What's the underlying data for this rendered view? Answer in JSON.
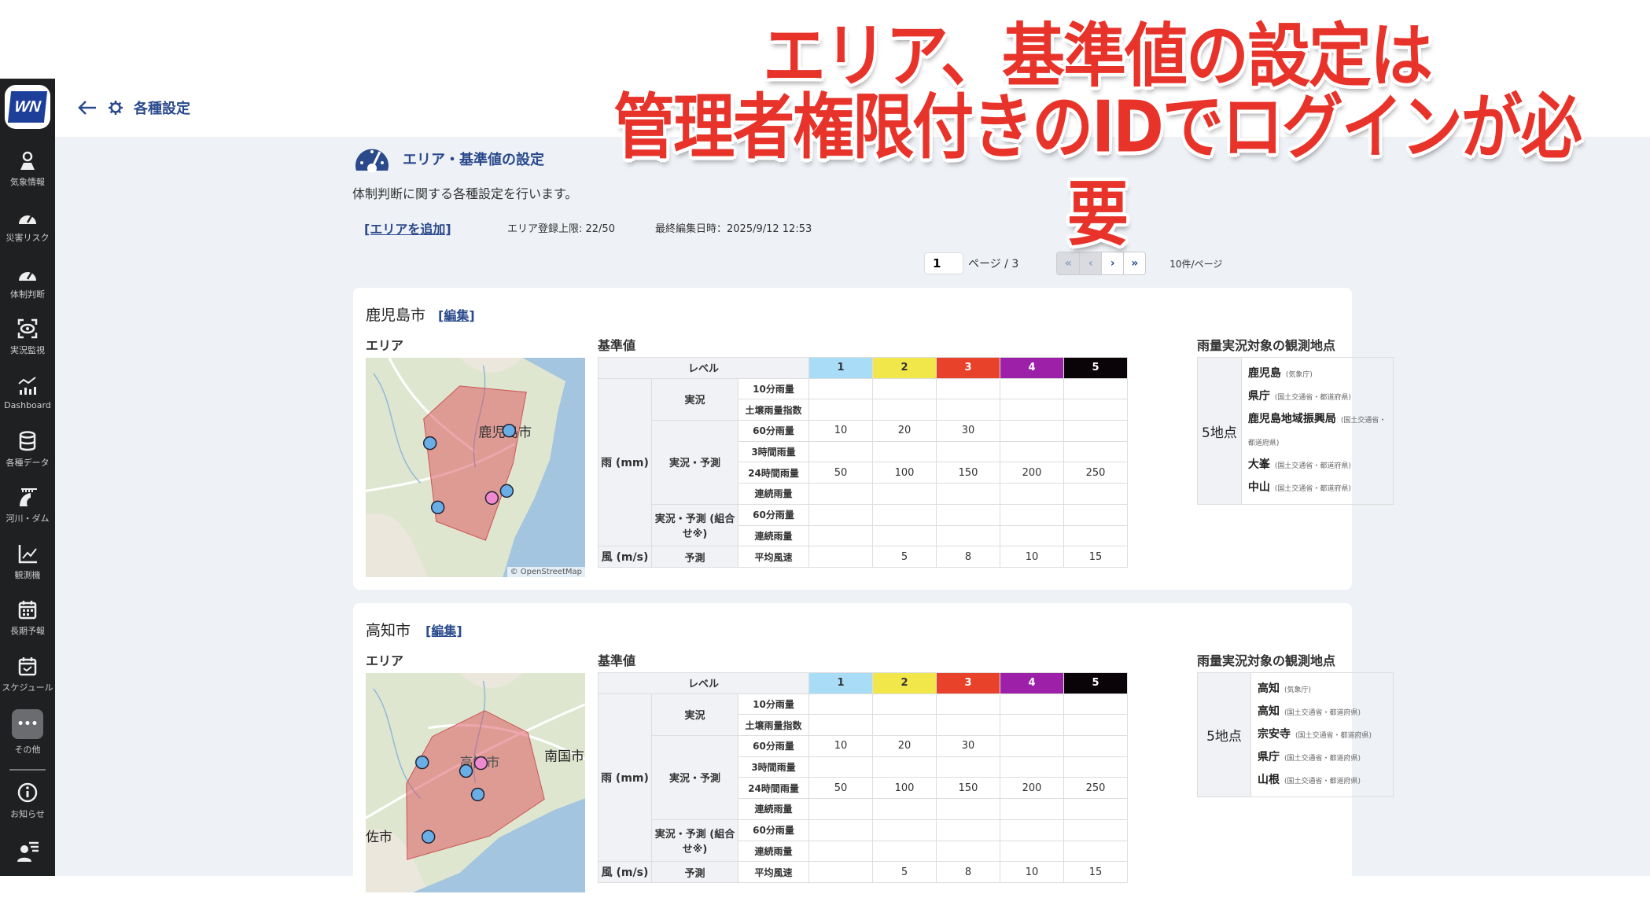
{
  "banner": {
    "line1": "エリア、基準値の設定は",
    "line2": "管理者権限付きのIDでログインが必要"
  },
  "sidebar": {
    "logo": "WN",
    "items": [
      {
        "label": "気象情報",
        "icon": "map-pin-icon"
      },
      {
        "label": "災害リスク",
        "icon": "gauge-icon"
      },
      {
        "label": "体制判断",
        "icon": "gauge-icon"
      },
      {
        "label": "実況監視",
        "icon": "eye-scan-icon"
      },
      {
        "label": "Dashboard",
        "icon": "chart-icon"
      },
      {
        "label": "各種データ",
        "icon": "database-icon"
      },
      {
        "label": "河川・ダム",
        "icon": "dam-icon"
      },
      {
        "label": "観測機",
        "icon": "line-chart-icon"
      },
      {
        "label": "長期予報",
        "icon": "calendar-icon"
      },
      {
        "label": "スケジュール",
        "icon": "calendar-check-icon"
      },
      {
        "label": "その他",
        "icon": "more-icon"
      }
    ],
    "notice": {
      "label": "お知らせ",
      "icon": "info-icon"
    },
    "user": {
      "icon": "user-menu-icon"
    }
  },
  "header": {
    "title": "各種設定"
  },
  "section": {
    "title": "エリア・基準値の設定",
    "description": "体制判断に関する各種設定を行います。",
    "add_area": "[エリアを追加]",
    "limit": "エリア登録上限: 22/50",
    "last_edited": "最終編集日時：2025/9/12 12:53"
  },
  "pager": {
    "page": "1",
    "of": "ページ / 3",
    "per_page": "10件/ページ",
    "buttons": [
      "«",
      "‹",
      "›",
      "»"
    ]
  },
  "labels": {
    "area": "エリア",
    "thresholds": "基準値",
    "stations": "雨量実況対象の観測地点",
    "edit": "[編集]",
    "osm": "© OpenStreetMap"
  },
  "levels": {
    "label": "レベル",
    "items": [
      {
        "label": "1",
        "color": "#a9dcf7",
        "text": "#333"
      },
      {
        "label": "2",
        "color": "#f1e64a",
        "text": "#333"
      },
      {
        "label": "3",
        "color": "#e8432a",
        "text": "#fff"
      },
      {
        "label": "4",
        "color": "#9c21a8",
        "text": "#fff"
      },
      {
        "label": "5",
        "color": "#0a0308",
        "text": "#fff"
      }
    ]
  },
  "areas": [
    {
      "name": "鹿児島市",
      "map_labels": [
        "鹿児島市"
      ],
      "station_count": "5地点",
      "stations": [
        {
          "name": "鹿児島",
          "src": "(気象庁)"
        },
        {
          "name": "県庁",
          "src": "(国土交通省・都道府県)"
        },
        {
          "name": "鹿児島地域振興局",
          "src": "(国土交通省・都道府県)"
        },
        {
          "name": "大峯",
          "src": "(国土交通省・都道府県)"
        },
        {
          "name": "中山",
          "src": "(国土交通省・都道府県)"
        }
      ],
      "groups": [
        {
          "label": "雨 (mm)",
          "subs": [
            {
              "label": "実況",
              "items": [
                {
                  "label": "10分雨量",
                  "values": [
                    "",
                    "",
                    "",
                    "",
                    ""
                  ]
                },
                {
                  "label": "土壌雨量指数",
                  "values": [
                    "",
                    "",
                    "",
                    "",
                    ""
                  ]
                }
              ]
            },
            {
              "label": "実況・予測",
              "items": [
                {
                  "label": "60分雨量",
                  "values": [
                    "10",
                    "20",
                    "30",
                    "",
                    ""
                  ]
                },
                {
                  "label": "3時間雨量",
                  "values": [
                    "",
                    "",
                    "",
                    "",
                    ""
                  ]
                },
                {
                  "label": "24時間雨量",
                  "values": [
                    "50",
                    "100",
                    "150",
                    "200",
                    "250"
                  ]
                },
                {
                  "label": "連続雨量",
                  "values": [
                    "",
                    "",
                    "",
                    "",
                    ""
                  ]
                }
              ]
            },
            {
              "label": "実況・予測 (組合せ※)",
              "items": [
                {
                  "label": "60分雨量",
                  "values": [
                    "",
                    "",
                    "",
                    "",
                    ""
                  ]
                },
                {
                  "label": "連続雨量",
                  "values": [
                    "",
                    "",
                    "",
                    "",
                    ""
                  ]
                }
              ]
            }
          ]
        },
        {
          "label": "風 (m/s)",
          "subs": [
            {
              "label": "予測",
              "items": [
                {
                  "label": "平均風速",
                  "values": [
                    "",
                    "5",
                    "8",
                    "10",
                    "15"
                  ]
                }
              ]
            }
          ]
        }
      ]
    },
    {
      "name": "高知市",
      "map_labels": [
        "高知市",
        "南国市",
        "佐市"
      ],
      "station_count": "5地点",
      "stations": [
        {
          "name": "高知",
          "src": "(気象庁)"
        },
        {
          "name": "高知",
          "src": "(国土交通省・都道府県)"
        },
        {
          "name": "宗安寺",
          "src": "(国土交通省・都道府県)"
        },
        {
          "name": "県庁",
          "src": "(国土交通省・都道府県)"
        },
        {
          "name": "山根",
          "src": "(国土交通省・都道府県)"
        }
      ],
      "groups": [
        {
          "label": "雨 (mm)",
          "subs": [
            {
              "label": "実況",
              "items": [
                {
                  "label": "10分雨量",
                  "values": [
                    "",
                    "",
                    "",
                    "",
                    ""
                  ]
                },
                {
                  "label": "土壌雨量指数",
                  "values": [
                    "",
                    "",
                    "",
                    "",
                    ""
                  ]
                }
              ]
            },
            {
              "label": "実況・予測",
              "items": [
                {
                  "label": "60分雨量",
                  "values": [
                    "10",
                    "20",
                    "30",
                    "",
                    ""
                  ]
                },
                {
                  "label": "3時間雨量",
                  "values": [
                    "",
                    "",
                    "",
                    "",
                    ""
                  ]
                },
                {
                  "label": "24時間雨量",
                  "values": [
                    "50",
                    "100",
                    "150",
                    "200",
                    "250"
                  ]
                },
                {
                  "label": "連続雨量",
                  "values": [
                    "",
                    "",
                    "",
                    "",
                    ""
                  ]
                }
              ]
            },
            {
              "label": "実況・予測 (組合せ※)",
              "items": [
                {
                  "label": "60分雨量",
                  "values": [
                    "",
                    "",
                    "",
                    "",
                    ""
                  ]
                },
                {
                  "label": "連続雨量",
                  "values": [
                    "",
                    "",
                    "",
                    "",
                    ""
                  ]
                }
              ]
            }
          ]
        },
        {
          "label": "風 (m/s)",
          "subs": [
            {
              "label": "予測",
              "items": [
                {
                  "label": "平均風速",
                  "values": [
                    "",
                    "5",
                    "8",
                    "10",
                    "15"
                  ]
                }
              ]
            }
          ]
        }
      ]
    }
  ]
}
